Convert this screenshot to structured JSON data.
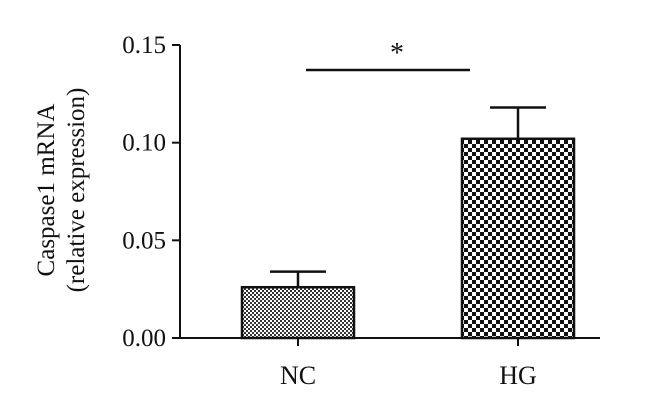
{
  "chart_data": {
    "type": "bar",
    "categories": [
      "NC",
      "HG"
    ],
    "values": [
      0.026,
      0.102
    ],
    "errors": [
      0.008,
      0.016
    ],
    "ylim": [
      0,
      0.15
    ],
    "yticks": [
      "0.00",
      "0.05",
      "0.10",
      "0.15"
    ],
    "ylabel_line1": "Caspase1 mRNA",
    "ylabel_line2": "(relative expression)",
    "xlabel": "",
    "significance": {
      "label": "*",
      "between": [
        "NC",
        "HG"
      ]
    },
    "bar_patterns": [
      "fine-checker",
      "coarse-checker"
    ],
    "colors": {
      "ink": "#111111",
      "background": "#ffffff"
    }
  }
}
